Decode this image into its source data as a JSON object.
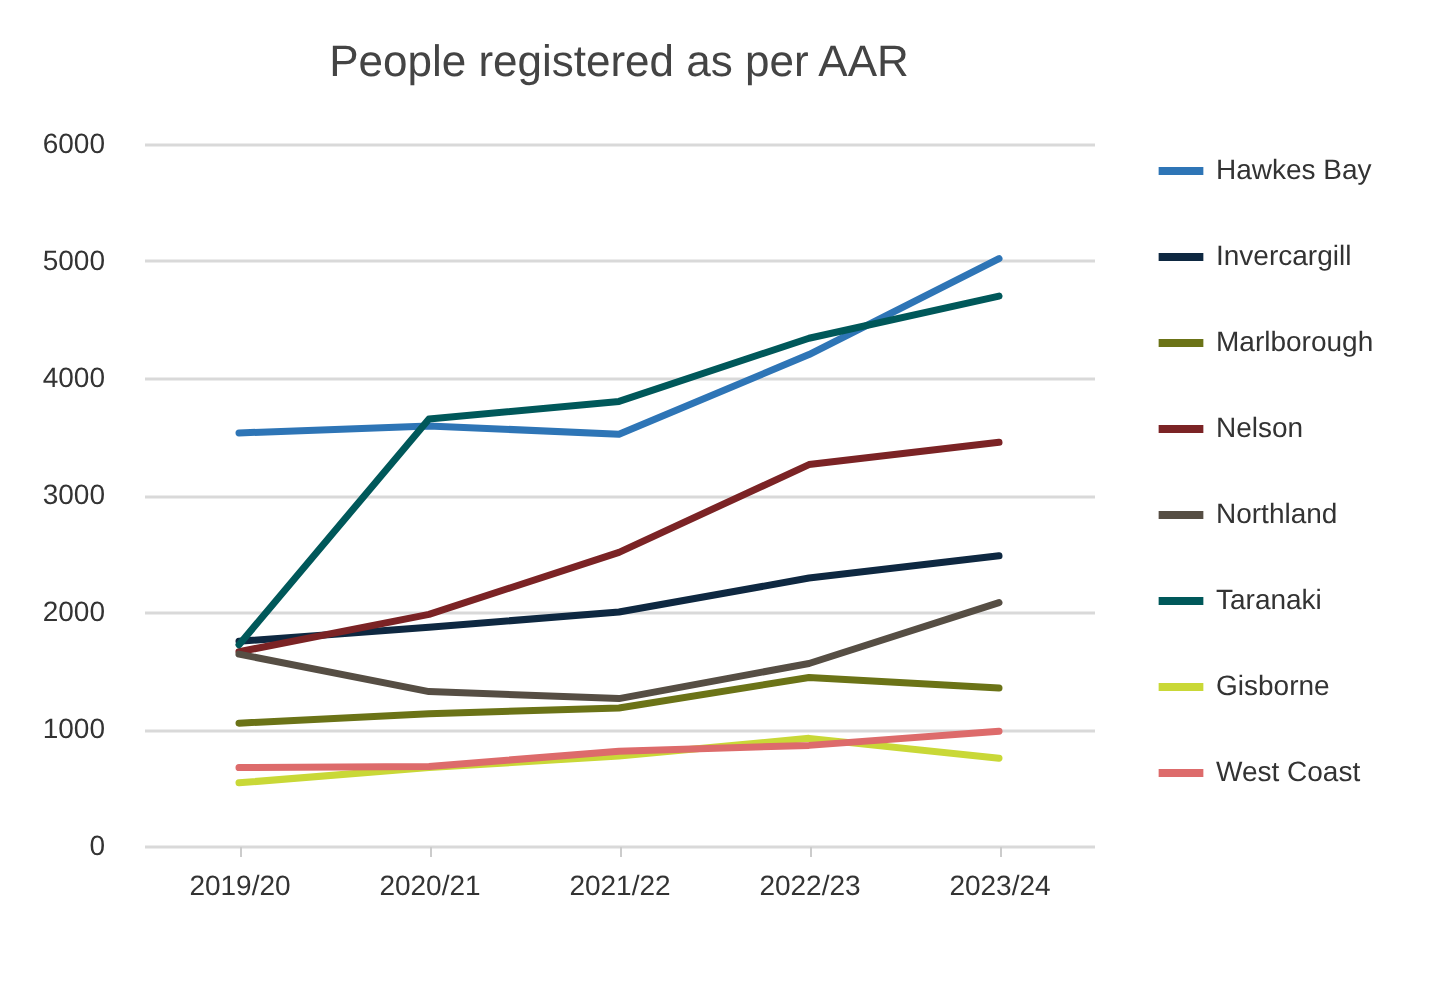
{
  "chart_data": {
    "type": "line",
    "title": "People registered as per AAR",
    "categories": [
      "2019/20",
      "2020/21",
      "2021/22",
      "2022/23",
      "2023/24"
    ],
    "ylim": [
      0,
      6000
    ],
    "yticks": [
      0,
      1000,
      2000,
      3000,
      4000,
      5000,
      6000
    ],
    "grid": "y",
    "legend": "right",
    "series": [
      {
        "name": "Hawkes Bay",
        "color": "#2e75b6",
        "values": [
          3530,
          3590,
          3520,
          4200,
          5020
        ]
      },
      {
        "name": "Invercargill",
        "color": "#0e2841",
        "values": [
          1750,
          1870,
          2000,
          2290,
          2480
        ]
      },
      {
        "name": "Marlborough",
        "color": "#6b7317",
        "values": [
          1050,
          1130,
          1180,
          1440,
          1350
        ]
      },
      {
        "name": "Nelson",
        "color": "#7b2325",
        "values": [
          1660,
          1980,
          2510,
          3260,
          3450
        ]
      },
      {
        "name": "Northland",
        "color": "#564e44",
        "values": [
          1640,
          1320,
          1260,
          1560,
          2080
        ]
      },
      {
        "name": "Taranaki",
        "color": "#00585a",
        "values": [
          1720,
          3650,
          3800,
          4340,
          4700
        ]
      },
      {
        "name": "Gisborne",
        "color": "#c9d837",
        "values": [
          540,
          670,
          770,
          920,
          750
        ]
      },
      {
        "name": "West Coast",
        "color": "#dd6b6b",
        "values": [
          670,
          680,
          810,
          860,
          980
        ]
      }
    ]
  }
}
